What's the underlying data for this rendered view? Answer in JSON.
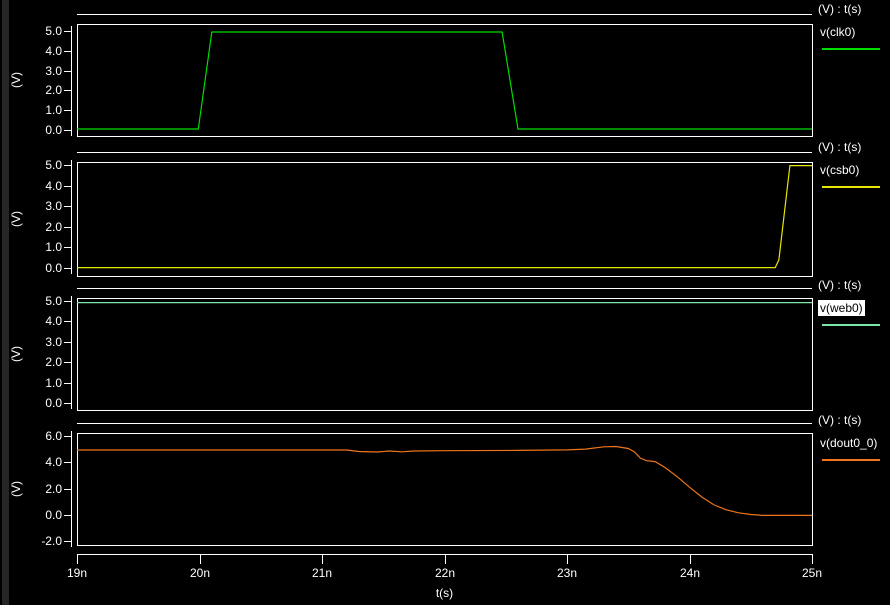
{
  "window": {
    "background": "#000000",
    "text_color": "#ffffff"
  },
  "xaxis": {
    "label": "t(s)",
    "unit_suffix": "n",
    "min": 19,
    "max": 25,
    "ticks": [
      19,
      20,
      21,
      22,
      23,
      24,
      25
    ],
    "tick_labels": [
      "19n",
      "20n",
      "21n",
      "22n",
      "23n",
      "24n",
      "25n"
    ]
  },
  "chart_data": [
    {
      "type": "line",
      "legend_header": "(V) : t(s)",
      "ylabel": "(V)",
      "ylim": [
        0,
        5
      ],
      "yticks": [
        0,
        1,
        2,
        3,
        4,
        5
      ],
      "ytick_labels": [
        "0.0",
        "1.0",
        "2.0",
        "3.0",
        "4.0",
        "5.0"
      ],
      "xlim": [
        19,
        25
      ],
      "grid": false,
      "selected": false,
      "series": [
        {
          "name": "v(clk0)",
          "color": "#00dd00",
          "points": [
            [
              19,
              0.05
            ],
            [
              19.99,
              0.05
            ],
            [
              20.1,
              4.95
            ],
            [
              22.47,
              4.95
            ],
            [
              22.6,
              0.05
            ],
            [
              25,
              0.05
            ]
          ]
        }
      ]
    },
    {
      "type": "line",
      "legend_header": "(V) : t(s)",
      "ylabel": "(V)",
      "ylim": [
        0,
        5
      ],
      "yticks": [
        0,
        1,
        2,
        3,
        4,
        5
      ],
      "ytick_labels": [
        "0.0",
        "1.0",
        "2.0",
        "3.0",
        "4.0",
        "5.0"
      ],
      "xlim": [
        19,
        25
      ],
      "grid": false,
      "selected": false,
      "series": [
        {
          "name": "v(csb0)",
          "color": "#e6e600",
          "points": [
            [
              19,
              0.02
            ],
            [
              24.7,
              0.02
            ],
            [
              24.73,
              0.4
            ],
            [
              24.82,
              4.97
            ],
            [
              25,
              4.97
            ]
          ]
        }
      ]
    },
    {
      "type": "line",
      "legend_header": "(V) : t(s)",
      "ylabel": "(V)",
      "ylim": [
        0,
        5
      ],
      "yticks": [
        0,
        1,
        2,
        3,
        4,
        5
      ],
      "ytick_labels": [
        "0.0",
        "1.0",
        "2.0",
        "3.0",
        "4.0",
        "5.0"
      ],
      "xlim": [
        19,
        25
      ],
      "grid": false,
      "selected": true,
      "series": [
        {
          "name": "v(web0)",
          "color": "#7de8a4",
          "points": [
            [
              19,
              4.92
            ],
            [
              25,
              4.92
            ]
          ]
        }
      ]
    },
    {
      "type": "line",
      "legend_header": "(V) : t(s)",
      "ylabel": "(V)",
      "ylim": [
        -2,
        6
      ],
      "yticks": [
        -2,
        0,
        2,
        4,
        6
      ],
      "ytick_labels": [
        "-2.0",
        "0.0",
        "2.0",
        "4.0",
        "6.0"
      ],
      "xlim": [
        19,
        25
      ],
      "grid": false,
      "selected": false,
      "series": [
        {
          "name": "v(dout0_0)",
          "color": "#ee7518",
          "points": [
            [
              19,
              4.93
            ],
            [
              21.2,
              4.93
            ],
            [
              21.3,
              4.82
            ],
            [
              21.45,
              4.78
            ],
            [
              21.55,
              4.86
            ],
            [
              21.65,
              4.8
            ],
            [
              21.75,
              4.86
            ],
            [
              22.0,
              4.88
            ],
            [
              22.6,
              4.9
            ],
            [
              23.0,
              4.94
            ],
            [
              23.15,
              5.0
            ],
            [
              23.3,
              5.18
            ],
            [
              23.4,
              5.2
            ],
            [
              23.5,
              5.05
            ],
            [
              23.55,
              4.8
            ],
            [
              23.6,
              4.3
            ],
            [
              23.65,
              4.12
            ],
            [
              23.72,
              4.05
            ],
            [
              23.8,
              3.6
            ],
            [
              23.9,
              2.9
            ],
            [
              24.0,
              2.1
            ],
            [
              24.1,
              1.35
            ],
            [
              24.2,
              0.75
            ],
            [
              24.3,
              0.38
            ],
            [
              24.4,
              0.15
            ],
            [
              24.5,
              0.02
            ],
            [
              24.6,
              -0.05
            ],
            [
              25,
              -0.05
            ]
          ]
        }
      ]
    }
  ]
}
